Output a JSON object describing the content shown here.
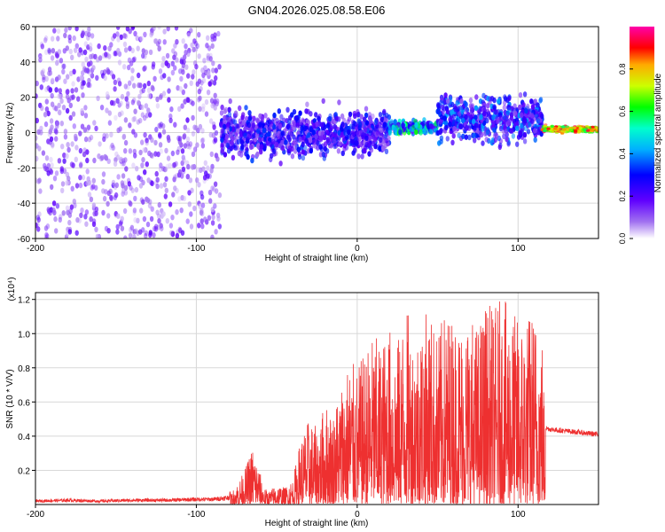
{
  "title": "GN04.2026.025.08.58.E06",
  "chart_data": [
    {
      "type": "heatmap",
      "title": "GN04.2026.025.08.58.E06",
      "xlabel": "Height of straight line (km)",
      "ylabel": "Frequency (Hz)",
      "xlim": [
        -200,
        150
      ],
      "ylim": [
        -60,
        60
      ],
      "x_ticks": [
        -200,
        -100,
        0,
        100
      ],
      "y_ticks": [
        -60,
        -40,
        -20,
        0,
        20,
        40,
        60
      ],
      "colorbar": {
        "label": "Normalized spectral amplitude",
        "range": [
          0,
          1
        ],
        "ticks": [
          "0.0",
          "0.2",
          "0.4",
          "0.6",
          "0.8"
        ],
        "tick_values": [
          0.0,
          0.2,
          0.4,
          0.6,
          0.8
        ],
        "colors": [
          "#ffffff",
          "#8a00e6",
          "#0000ff",
          "#00ffff",
          "#00ff00",
          "#ffff00",
          "#ff0000",
          "#ff00aa"
        ]
      },
      "regions": [
        {
          "x_range": [
            -200,
            -85
          ],
          "freq_center": 0,
          "freq_spread": 60,
          "amplitude": 0.08,
          "description": "diffuse noise"
        },
        {
          "x_range": [
            -85,
            20
          ],
          "freq_center": 0,
          "freq_spread": 15,
          "amplitude": 0.25
        },
        {
          "x_range": [
            20,
            50
          ],
          "freq_center": 3,
          "freq_spread": 4,
          "amplitude": 0.45
        },
        {
          "x_range": [
            50,
            115
          ],
          "freq_center": 8,
          "freq_spread": 15,
          "amplitude": 0.3
        },
        {
          "x_range": [
            115,
            150
          ],
          "freq_center": 2,
          "freq_spread": 2,
          "amplitude": 0.95
        }
      ]
    },
    {
      "type": "line",
      "xlabel": "Height of straight line (km)",
      "ylabel": "SNR (10 * V/V)",
      "y_multiplier": "(x10⁴)",
      "xlim": [
        -200,
        150
      ],
      "ylim": [
        0,
        1.24
      ],
      "x_ticks": [
        -200,
        -100,
        0,
        100
      ],
      "y_ticks": [
        0.2,
        0.4,
        0.6,
        0.8,
        1.0,
        1.2
      ],
      "color": "#ee3030",
      "x": [
        -200,
        -180,
        -160,
        -140,
        -120,
        -100,
        -90,
        -80,
        -75,
        -70,
        -65,
        -62,
        -58,
        -55,
        -50,
        -45,
        -40,
        -35,
        -30,
        -25,
        -20,
        -15,
        -10,
        -5,
        0,
        5,
        10,
        15,
        20,
        25,
        30,
        35,
        40,
        45,
        50,
        55,
        60,
        65,
        70,
        75,
        80,
        85,
        90,
        95,
        100,
        105,
        110,
        115,
        117,
        120,
        130,
        140,
        150
      ],
      "y": [
        0.02,
        0.025,
        0.02,
        0.025,
        0.025,
        0.03,
        0.03,
        0.04,
        0.12,
        0.2,
        0.35,
        0.25,
        0.1,
        0.08,
        0.12,
        0.1,
        0.15,
        0.4,
        0.5,
        0.45,
        0.6,
        0.55,
        0.72,
        0.85,
        0.8,
        0.9,
        1.0,
        0.95,
        1.05,
        0.95,
        1.18,
        1.0,
        1.1,
        1.15,
        1.0,
        1.15,
        1.1,
        1.08,
        1.12,
        1.05,
        1.2,
        1.15,
        1.22,
        1.15,
        1.1,
        1.12,
        1.15,
        1.0,
        0.45,
        0.44,
        0.43,
        0.42,
        0.41
      ]
    }
  ]
}
